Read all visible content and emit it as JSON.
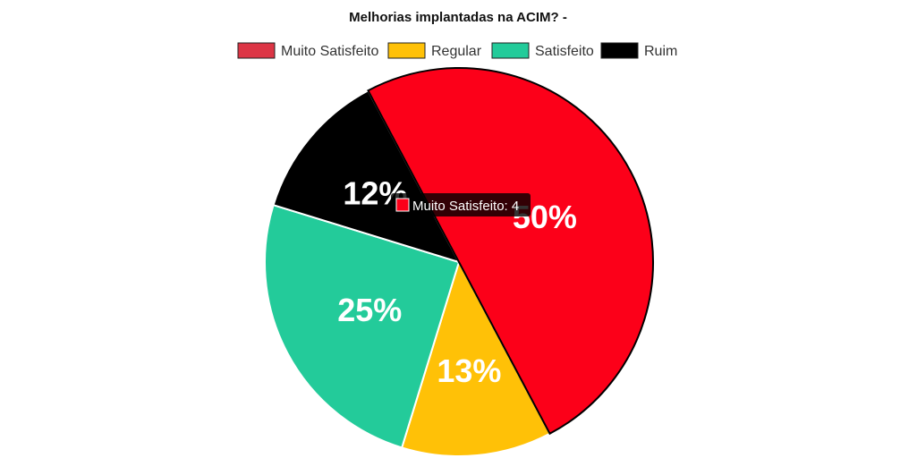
{
  "chart_data": {
    "type": "pie",
    "title": "Melhorias implantadas na ACIM? -",
    "legend_position": "top",
    "categories": [
      "Muito Satisfeito",
      "Regular",
      "Satisfeito",
      "Ruim"
    ],
    "values": [
      4,
      1,
      2,
      1
    ],
    "percent_labels": [
      "50%",
      "13%",
      "25%",
      "12%"
    ],
    "colors": [
      "#fc0019",
      "#ffc107",
      "#23cb9a",
      "#000000"
    ],
    "legend_colors": [
      "#dc3545",
      "#ffc107",
      "#23cb9a",
      "#000000"
    ],
    "tooltip": {
      "category": "Muito Satisfeito",
      "value": "4",
      "text": "Muito Satisfeito: 4"
    }
  }
}
